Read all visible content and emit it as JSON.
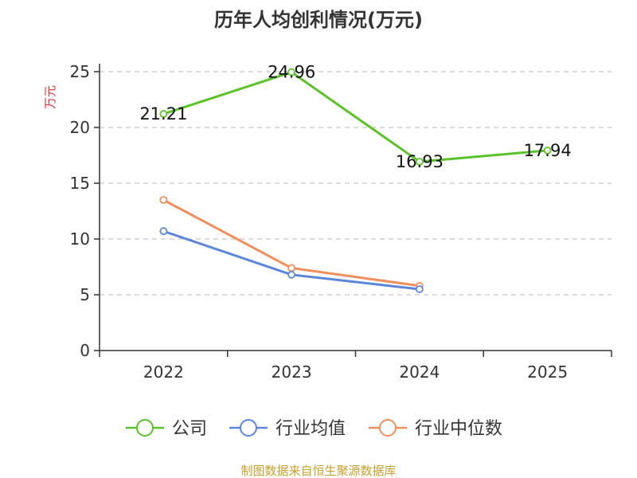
{
  "chart_data": {
    "type": "line",
    "title": "历年人均创利情况(万元)",
    "xlabel": "",
    "ylabel": "万元",
    "categories": [
      "2022",
      "2023",
      "2024",
      "2025"
    ],
    "ylim": [
      0,
      25
    ],
    "yticks": [
      "0",
      "5",
      "10",
      "15",
      "20",
      "25"
    ],
    "grid": true,
    "legend_position": "bottom",
    "series": [
      {
        "name": "公司",
        "color": "#5bc22a",
        "values": [
          21.21,
          24.96,
          16.93,
          17.94
        ],
        "labels": [
          "21.21",
          "24.96",
          "16.93",
          "17.94"
        ]
      },
      {
        "name": "行业均值",
        "color": "#5b87db",
        "values": [
          10.7,
          6.8,
          5.5,
          null
        ]
      },
      {
        "name": "行业中位数",
        "color": "#f28e5c",
        "values": [
          13.5,
          7.4,
          5.8,
          null
        ]
      }
    ],
    "source": "制图数据来自恒生聚源数据库",
    "source_color": "#c8a02d",
    "ylabel_color": "#e03030"
  }
}
